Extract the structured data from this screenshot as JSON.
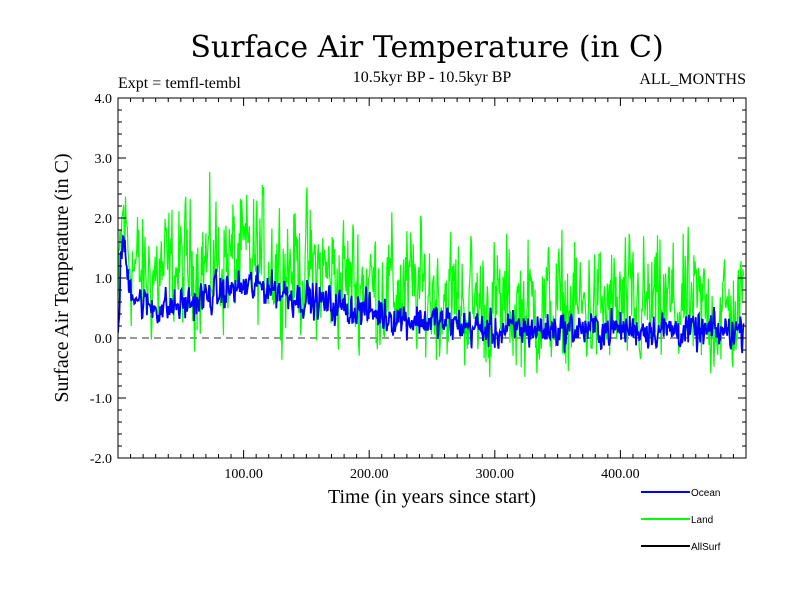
{
  "chart_data": {
    "type": "line",
    "title": "Surface Air Temperature (in C)",
    "subtitle_left": "Expt = temfl-tembl",
    "subtitle_center": "10.5kyr BP - 10.5kyr BP",
    "subtitle_right": "ALL_MONTHS",
    "xlabel": "Time (in years since start)",
    "ylabel": "Surface Air Temperature (in C)",
    "xlim": [
      0,
      500
    ],
    "ylim": [
      -2.0,
      4.0
    ],
    "xticks": [
      100,
      200,
      300,
      400
    ],
    "xtick_labels": [
      "100.00",
      "200.00",
      "300.00",
      "400.00"
    ],
    "yticks": [
      -2.0,
      -1.0,
      0.0,
      1.0,
      2.0,
      3.0,
      4.0
    ],
    "ytick_labels": [
      "-2.0",
      "-1.0",
      "0.0",
      "1.0",
      "2.0",
      "3.0",
      "4.0"
    ],
    "reference_line": {
      "y": 0.0,
      "style": "dashed"
    },
    "legend_position": "bottom-right",
    "series": [
      {
        "name": "Land",
        "color": "#00ff00",
        "noise": 0.5,
        "x": [
          0,
          2,
          4,
          6,
          8,
          12,
          20,
          40,
          60,
          80,
          100,
          120,
          140,
          160,
          180,
          200,
          220,
          240,
          260,
          280,
          300,
          320,
          340,
          360,
          380,
          400,
          420,
          440,
          460,
          480,
          498
        ],
        "mean": [
          0.3,
          1.5,
          2.0,
          1.8,
          1.5,
          1.2,
          1.0,
          1.1,
          1.2,
          1.3,
          1.3,
          1.3,
          1.2,
          1.1,
          1.0,
          0.9,
          0.8,
          0.8,
          0.7,
          0.6,
          0.5,
          0.5,
          0.5,
          0.5,
          0.5,
          0.5,
          0.5,
          0.5,
          0.5,
          0.4,
          0.4
        ]
      },
      {
        "name": "Ocean",
        "color": "#0000ff",
        "noise": 0.14,
        "x": [
          0,
          2,
          4,
          6,
          8,
          12,
          20,
          40,
          60,
          80,
          100,
          120,
          140,
          160,
          180,
          200,
          220,
          240,
          260,
          280,
          300,
          320,
          340,
          360,
          380,
          400,
          420,
          440,
          460,
          480,
          498
        ],
        "mean": [
          0.1,
          1.2,
          1.7,
          1.3,
          1.0,
          0.8,
          0.55,
          0.5,
          0.6,
          0.75,
          0.85,
          0.85,
          0.7,
          0.6,
          0.5,
          0.45,
          0.35,
          0.3,
          0.25,
          0.2,
          0.1,
          0.15,
          0.15,
          0.15,
          0.15,
          0.15,
          0.15,
          0.15,
          0.1,
          0.1,
          0.15
        ]
      },
      {
        "name": "AllSurf",
        "color": "#000000",
        "noise": 0,
        "x": [],
        "mean": []
      }
    ]
  }
}
